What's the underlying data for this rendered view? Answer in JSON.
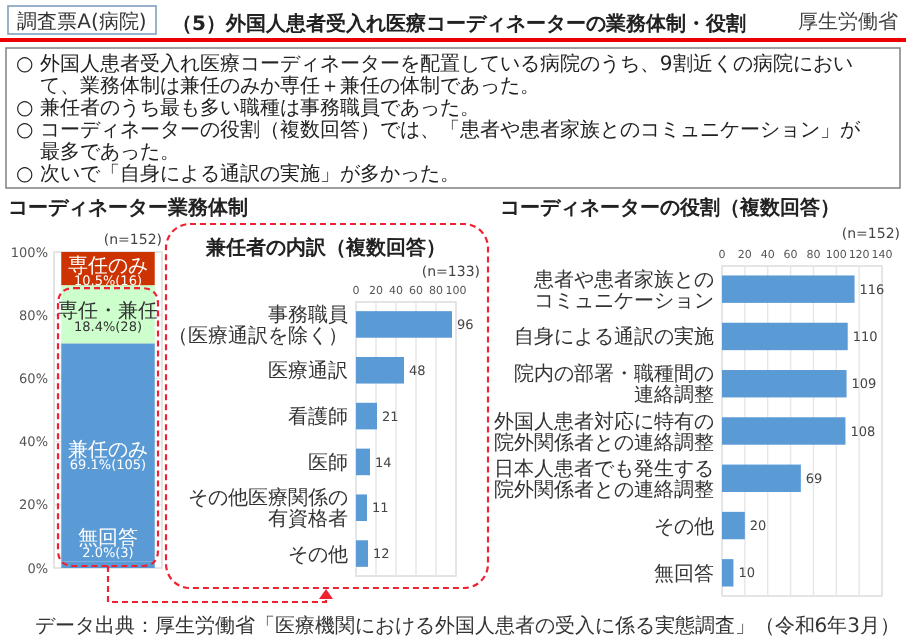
{
  "chart_data": [
    {
      "type": "other",
      "title": "（5）外国人患者受入れ医療コーディネーターの業務体制・役割",
      "annotations": [
        "調査票A(病院)",
        "厚生労働省",
        "○ 外国人患者受入れ医療コーディネーターを配置している病院のうち、9割近くの病院において、業務体制は兼任のみか専任＋兼任の体制であった。",
        "○ 兼任者のうち最も多い職種は事務職員であった。",
        "○ コーディネーターの役割（複数回答）では、「患者や患者家族とのコミュニケーション」が最多であった。",
        "○ 次いで「自身による通訳の実施」が多かった。",
        "データ出典：厚生労働省「医療機関における外国人患者の受入に係る実態調査」（令和6年3月）"
      ]
    },
    {
      "type": "bar",
      "stacked": true,
      "title": "コーディネーター業務体制",
      "categories": [
        null
      ],
      "series": [
        {
          "name": "無回答",
          "color": "#5b9bd5",
          "values": [
            2.0
          ],
          "value_labels": [
            "2.0%(3)"
          ]
        },
        {
          "name": "兼任のみ",
          "color": "#5b9bd5",
          "values": [
            69.1
          ],
          "value_labels": [
            "69.1%(105)"
          ]
        },
        {
          "name": "専任・兼任",
          "color": "#ccffcc",
          "values": [
            18.4
          ],
          "value_labels": [
            "18.4%(28)"
          ]
        },
        {
          "name": "専任のみ",
          "color": "#cc3300",
          "values": [
            10.5
          ],
          "value_labels": [
            "10.5%(16)"
          ]
        }
      ],
      "ylim": [
        0,
        100
      ],
      "yticks": [
        {
          "value": 0,
          "label": "0%"
        },
        {
          "value": 20,
          "label": "20%"
        },
        {
          "value": 40,
          "label": "40%"
        },
        {
          "value": 60,
          "label": "60%"
        },
        {
          "value": 80,
          "label": "80%"
        },
        {
          "value": 100,
          "label": "100%"
        }
      ],
      "grid": "y",
      "annotations": [
        "(n=152)"
      ]
    },
    {
      "type": "bar",
      "orientation": "horizontal",
      "title": "兼任者の内訳（複数回答）",
      "categories": [
        "事務職員（医療通訳を除く）",
        "医療通訳",
        "看護師",
        "医師",
        "その他医療関係の有資格者",
        "その他"
      ],
      "values": [
        96,
        48,
        21,
        14,
        11,
        12
      ],
      "color": "#5b9bd5",
      "xlim": [
        0,
        100
      ],
      "xticks": [
        0,
        20,
        40,
        60,
        80,
        100
      ],
      "grid": "x",
      "data_labels": true,
      "annotations": [
        "(n=133)"
      ]
    },
    {
      "type": "bar",
      "orientation": "horizontal",
      "title": "コーディネーターの役割（複数回答）",
      "categories": [
        "患者や患者家族とのコミュニケーション",
        "自身による通訳の実施",
        "院内の部署・職種間の連絡調整",
        "外国人患者対応に特有の院外関係者との連絡調整",
        "日本人患者でも発生する院外関係者との連絡調整",
        "その他",
        "無回答"
      ],
      "values": [
        116,
        110,
        109,
        108,
        69,
        20,
        10
      ],
      "color": "#5b9bd5",
      "xlim": [
        0,
        140
      ],
      "xticks": [
        0,
        20,
        40,
        60,
        80,
        100,
        120,
        140
      ],
      "grid": "x",
      "data_labels": true,
      "annotations": [
        "(n=152)"
      ]
    }
  ]
}
